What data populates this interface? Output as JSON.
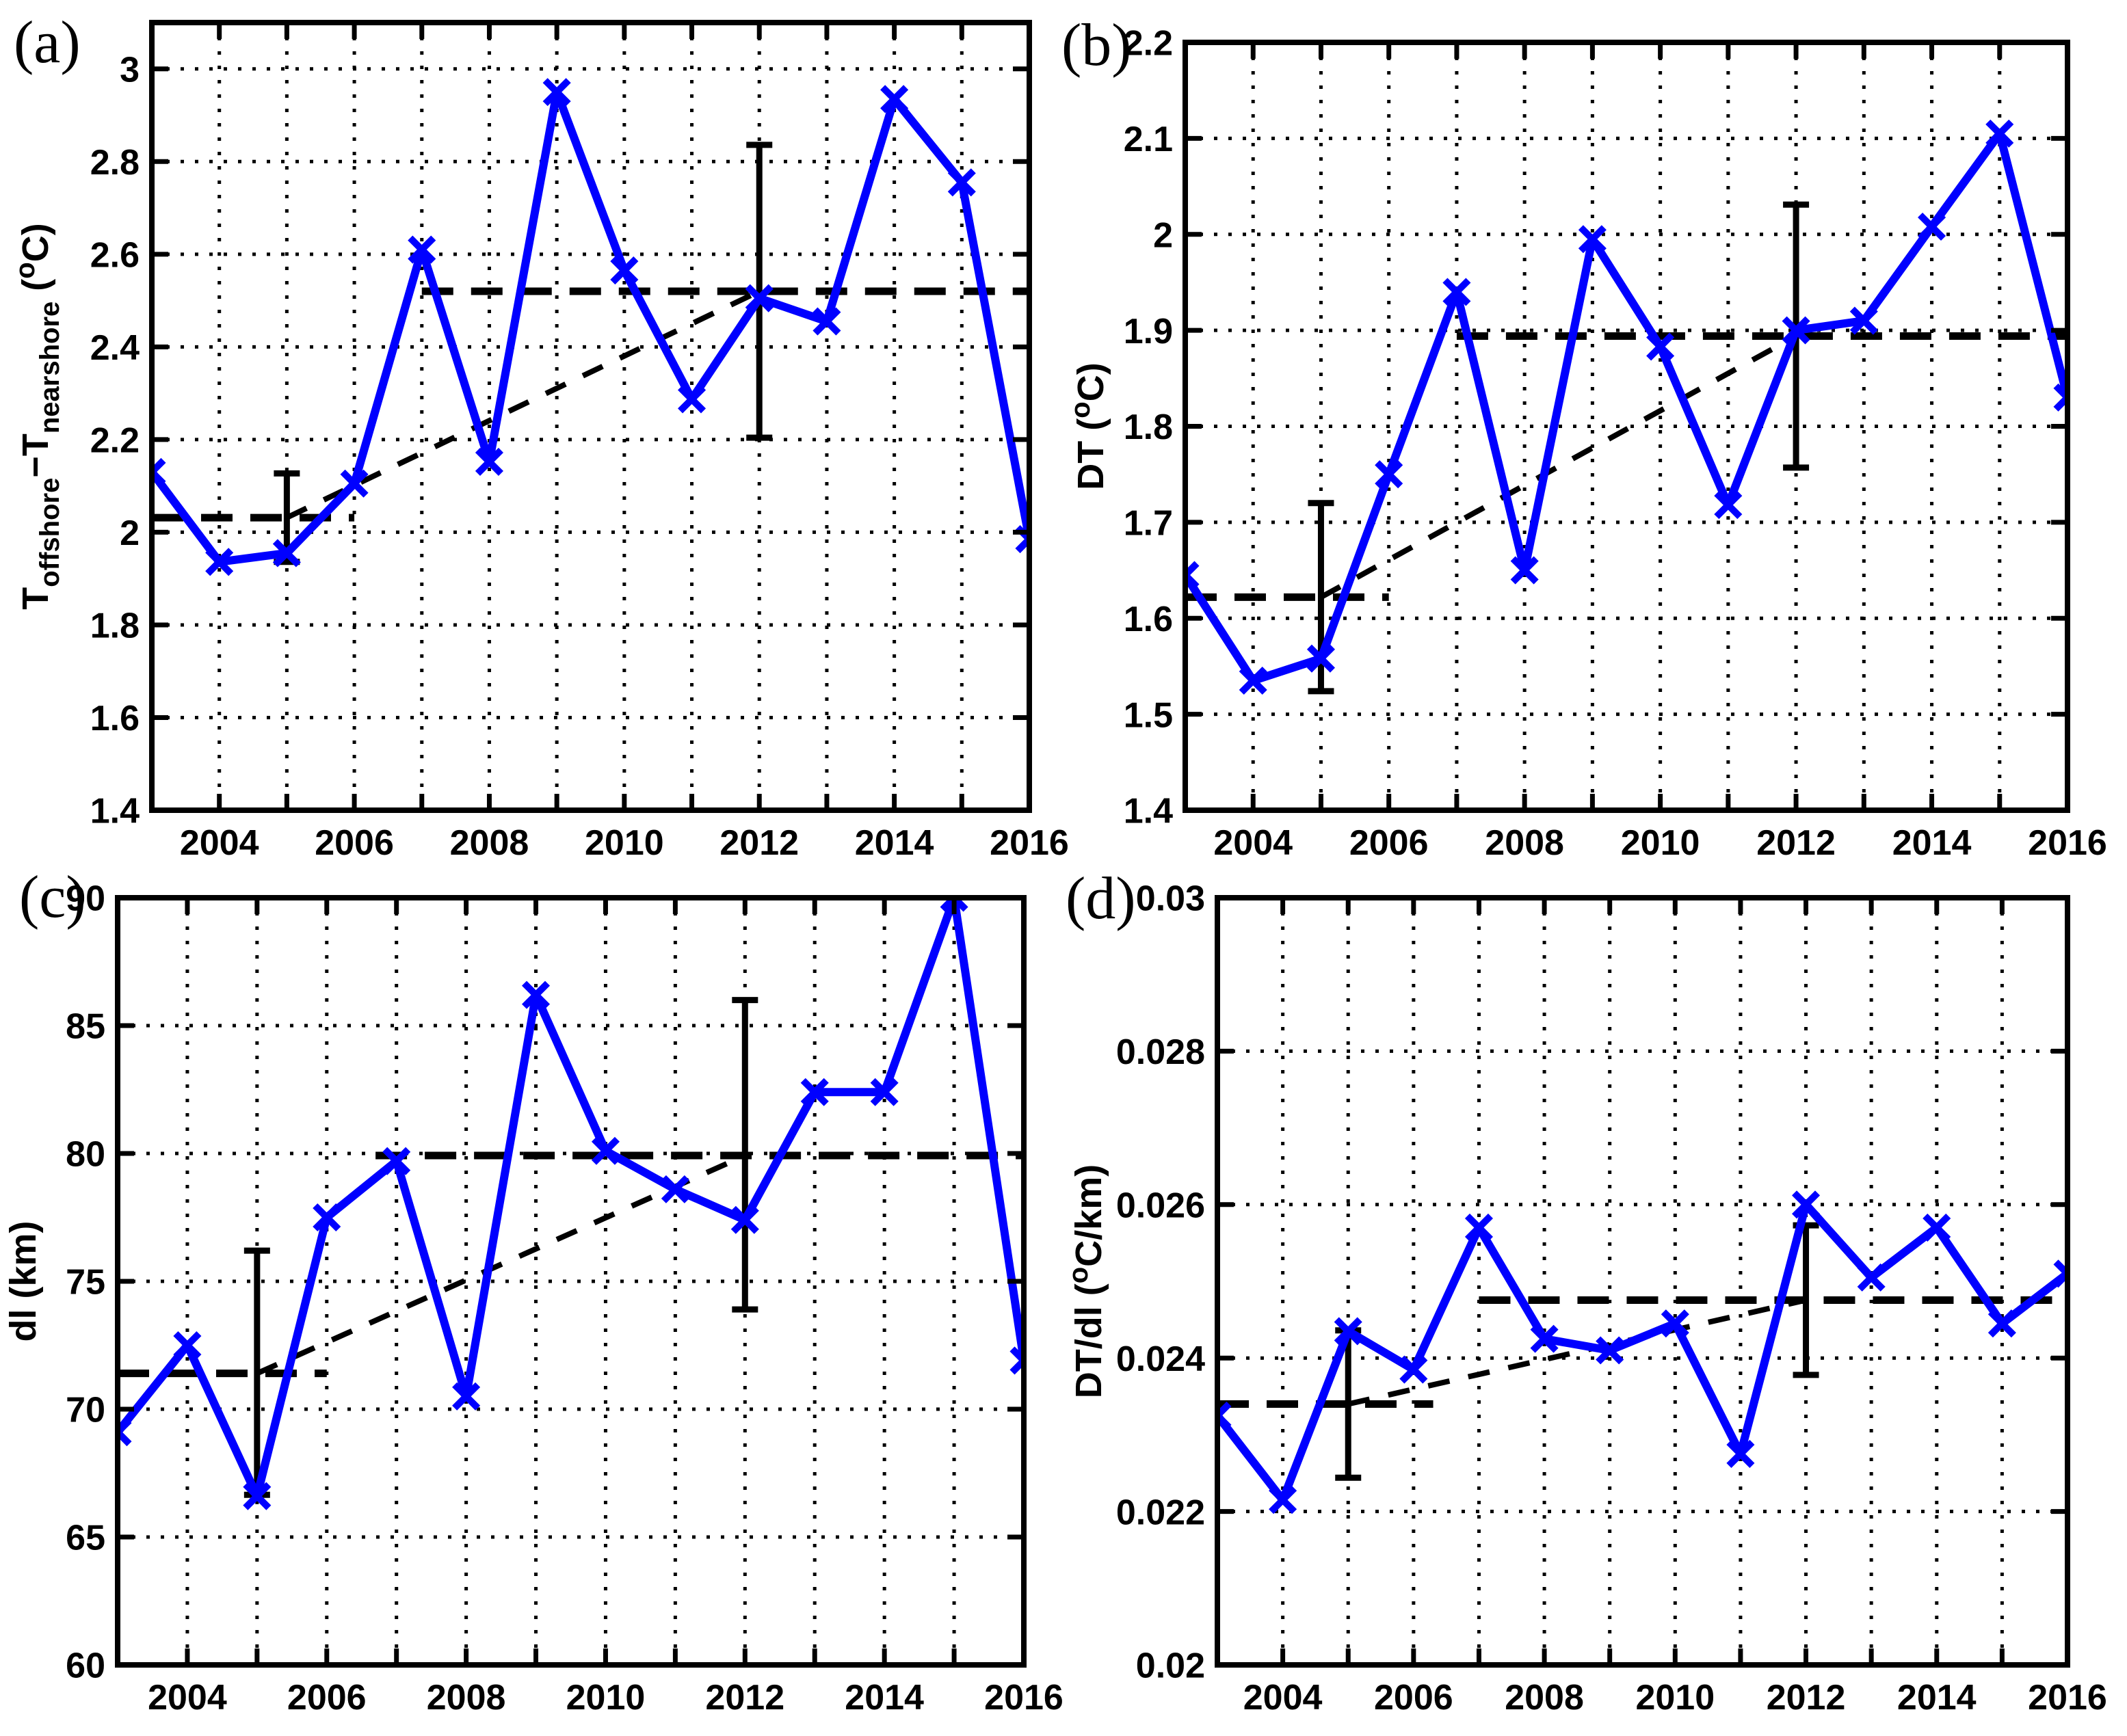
{
  "figure": {
    "background": "#ffffff",
    "x_axis_years_range": [
      2003,
      2016
    ]
  },
  "colors": {
    "series_line": "#0000ff",
    "overlay": "#000000",
    "grid": "#000000"
  },
  "chart_data": [
    {
      "type": "line",
      "panel_label": "(a)",
      "ylabel_segments": [
        {
          "t": "T"
        },
        {
          "t": "offshore",
          "style": "sub"
        },
        {
          "t": "−T"
        },
        {
          "t": "nearshore",
          "style": "sub"
        },
        {
          "t": " ("
        },
        {
          "t": "o",
          "style": "sup"
        },
        {
          "t": "C)"
        }
      ],
      "x": [
        2003,
        2004,
        2005,
        2006,
        2007,
        2008,
        2009,
        2010,
        2011,
        2012,
        2013,
        2014,
        2015,
        2016
      ],
      "series": [
        {
          "values": [
            2.13,
            1.936,
            1.955,
            2.105,
            2.61,
            2.152,
            2.95,
            2.565,
            2.287,
            2.505,
            2.455,
            2.935,
            2.755,
            1.985
          ]
        }
      ],
      "xlim": [
        2003,
        2016
      ],
      "ylim": [
        1.4,
        3.1
      ],
      "xticks": {
        "values": [
          2004,
          2006,
          2008,
          2010,
          2012,
          2014,
          2016
        ],
        "labels": [
          "2004",
          "2006",
          "2008",
          "2010",
          "2012",
          "2014",
          "2016"
        ]
      },
      "yticks": {
        "values": [
          1.4,
          1.6,
          1.8,
          2.0,
          2.2,
          2.4,
          2.6,
          2.8,
          3.0
        ],
        "labels": [
          "1.4",
          "1.6",
          "1.8",
          "2",
          "2.2",
          "2.4",
          "2.6",
          "2.8",
          "3"
        ]
      },
      "mean_segments": [
        {
          "x1": 2003,
          "x2": 2006,
          "y": 2.0315
        },
        {
          "x1": 2007,
          "x2": 2016,
          "y": 2.52
        }
      ],
      "trend_line": {
        "x1": 2005,
        "y1": 2.0315,
        "x2": 2012,
        "y2": 2.52
      },
      "error_bars": [
        {
          "x": 2005,
          "low": 1.936,
          "high": 2.127
        },
        {
          "x": 2012,
          "low": 2.204,
          "high": 2.836
        }
      ],
      "grid": "dotted"
    },
    {
      "type": "line",
      "panel_label": "(b)",
      "ylabel_segments": [
        {
          "t": "DT ("
        },
        {
          "t": "o",
          "style": "sup"
        },
        {
          "t": "C)"
        }
      ],
      "x": [
        2003,
        2004,
        2005,
        2006,
        2007,
        2008,
        2009,
        2010,
        2011,
        2012,
        2013,
        2014,
        2015,
        2016
      ],
      "series": [
        {
          "values": [
            1.645,
            1.535,
            1.558,
            1.75,
            1.94,
            1.65,
            1.995,
            1.883,
            1.718,
            1.9,
            1.91,
            2.008,
            2.105,
            1.83
          ]
        }
      ],
      "xlim": [
        2003,
        2016
      ],
      "ylim": [
        1.4,
        2.2
      ],
      "xticks": {
        "values": [
          2004,
          2006,
          2008,
          2010,
          2012,
          2014,
          2016
        ],
        "labels": [
          "2004",
          "2006",
          "2008",
          "2010",
          "2012",
          "2014",
          "2016"
        ]
      },
      "yticks": {
        "values": [
          1.4,
          1.5,
          1.6,
          1.7,
          1.8,
          1.9,
          2.0,
          2.1,
          2.2
        ],
        "labels": [
          "1.4",
          "1.5",
          "1.6",
          "1.7",
          "1.8",
          "1.9",
          "2",
          "2.1",
          "2.2"
        ]
      },
      "mean_segments": [
        {
          "x1": 2003,
          "x2": 2006,
          "y": 1.622
        },
        {
          "x1": 2007,
          "x2": 2016,
          "y": 1.894
        }
      ],
      "trend_line": {
        "x1": 2005,
        "y1": 1.622,
        "x2": 2012,
        "y2": 1.894
      },
      "error_bars": [
        {
          "x": 2005,
          "low": 1.524,
          "high": 1.72
        },
        {
          "x": 2012,
          "low": 1.757,
          "high": 2.031
        }
      ],
      "grid": "dotted"
    },
    {
      "type": "line",
      "panel_label": "(c)",
      "ylabel_segments": [
        {
          "t": "dl (km)"
        }
      ],
      "x": [
        2003,
        2004,
        2005,
        2006,
        2007,
        2008,
        2009,
        2010,
        2011,
        2012,
        2013,
        2014,
        2015,
        2016
      ],
      "series": [
        {
          "values": [
            69.1,
            72.5,
            66.6,
            77.5,
            79.7,
            70.5,
            86.2,
            80.1,
            78.6,
            77.4,
            82.4,
            82.4,
            90.0,
            71.9
          ]
        }
      ],
      "xlim": [
        2003,
        2016
      ],
      "ylim": [
        60,
        90
      ],
      "xticks": {
        "values": [
          2004,
          2006,
          2008,
          2010,
          2012,
          2014,
          2016
        ],
        "labels": [
          "2004",
          "2006",
          "2008",
          "2010",
          "2012",
          "2014",
          "2016"
        ]
      },
      "yticks": {
        "values": [
          60,
          65,
          70,
          75,
          80,
          85,
          90
        ],
        "labels": [
          "60",
          "65",
          "70",
          "75",
          "80",
          "85",
          "90"
        ]
      },
      "mean_segments": [
        {
          "x1": 2003,
          "x2": 2006,
          "y": 71.4
        },
        {
          "x1": 2006.7,
          "x2": 2016,
          "y": 79.92
        }
      ],
      "trend_line": {
        "x1": 2005,
        "y1": 71.4,
        "x2": 2012,
        "y2": 79.92
      },
      "error_bars": [
        {
          "x": 2005,
          "low": 66.65,
          "high": 76.2
        },
        {
          "x": 2012,
          "low": 73.9,
          "high": 86.0
        }
      ],
      "grid": "dotted"
    },
    {
      "type": "line",
      "panel_label": "(d)",
      "ylabel_segments": [
        {
          "t": "DT/dl ("
        },
        {
          "t": "o",
          "style": "sup"
        },
        {
          "t": "C/km)"
        }
      ],
      "x": [
        2003,
        2004,
        2005,
        2006,
        2007,
        2008,
        2009,
        2010,
        2011,
        2012,
        2013,
        2014,
        2015,
        2016
      ],
      "series": [
        {
          "values": [
            0.02325,
            0.02215,
            0.02435,
            0.02385,
            0.0257,
            0.02425,
            0.0241,
            0.02445,
            0.02275,
            0.026,
            0.02505,
            0.0257,
            0.02445,
            0.0251
          ]
        }
      ],
      "xlim": [
        2003,
        2016
      ],
      "ylim": [
        0.02,
        0.03
      ],
      "xticks": {
        "values": [
          2004,
          2006,
          2008,
          2010,
          2012,
          2014,
          2016
        ],
        "labels": [
          "2004",
          "2006",
          "2008",
          "2010",
          "2012",
          "2014",
          "2016"
        ]
      },
      "yticks": {
        "values": [
          0.02,
          0.022,
          0.024,
          0.026,
          0.028,
          0.03
        ],
        "labels": [
          "0.02",
          "0.022",
          "0.024",
          "0.026",
          "0.028",
          "0.03"
        ]
      },
      "mean_segments": [
        {
          "x1": 2003,
          "x2": 2006.3,
          "y": 0.0234
        },
        {
          "x1": 2007,
          "x2": 2016,
          "y": 0.024755
        }
      ],
      "trend_line": {
        "x1": 2005,
        "y1": 0.0234,
        "x2": 2012,
        "y2": 0.024755
      },
      "error_bars": [
        {
          "x": 2005,
          "low": 0.02244,
          "high": 0.02436
        },
        {
          "x": 2012,
          "low": 0.02378,
          "high": 0.02573
        }
      ],
      "grid": "dotted"
    }
  ]
}
